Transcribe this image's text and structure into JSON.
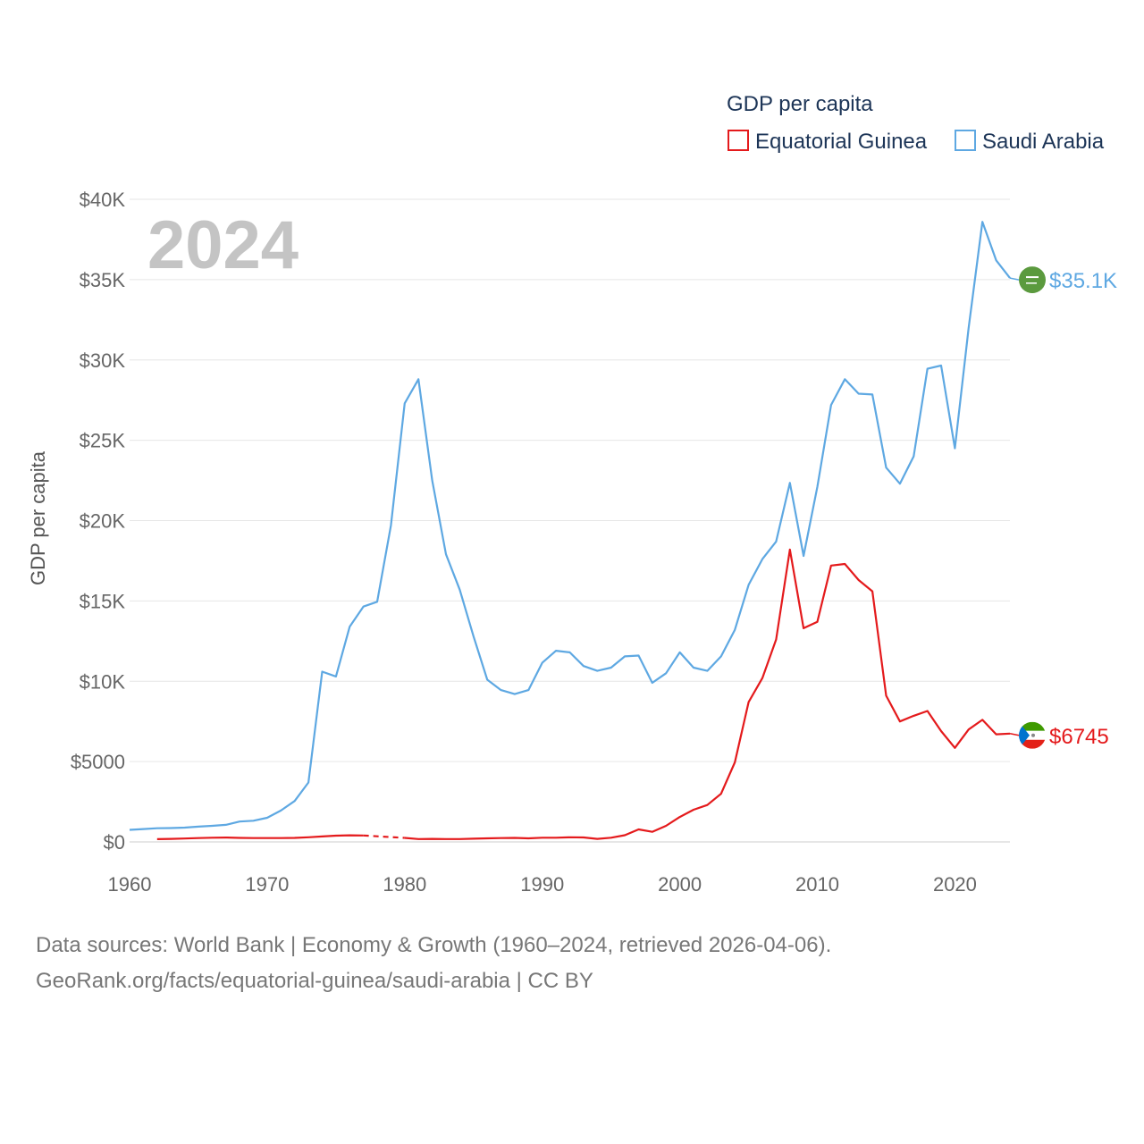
{
  "chart_data": {
    "type": "line",
    "title": "2024",
    "ylabel": "GDP per capita",
    "xlabel": "",
    "legend_title": "GDP per capita",
    "legend_position": "top-right",
    "xlim": [
      1960,
      2024
    ],
    "ylim": [
      0,
      40000
    ],
    "x_ticks": [
      1960,
      1970,
      1980,
      1990,
      2000,
      2010,
      2020
    ],
    "y_ticks": [
      {
        "value": 0,
        "label": "$0"
      },
      {
        "value": 5000,
        "label": "$5000"
      },
      {
        "value": 10000,
        "label": "$10K"
      },
      {
        "value": 15000,
        "label": "$15K"
      },
      {
        "value": 20000,
        "label": "$20K"
      },
      {
        "value": 25000,
        "label": "$25K"
      },
      {
        "value": 30000,
        "label": "$30K"
      },
      {
        "value": 35000,
        "label": "$35K"
      },
      {
        "value": 40000,
        "label": "$40K"
      }
    ],
    "series": [
      {
        "name": "Equatorial Guinea",
        "color": "#e41a1c",
        "end_label": "$6745",
        "flag_icon": "equatorial-guinea-flag-icon",
        "gap_years": [
          1977,
          1980
        ],
        "points": [
          [
            1962,
            170
          ],
          [
            1963,
            190
          ],
          [
            1964,
            210
          ],
          [
            1965,
            240
          ],
          [
            1966,
            260
          ],
          [
            1967,
            270
          ],
          [
            1968,
            250
          ],
          [
            1969,
            240
          ],
          [
            1970,
            240
          ],
          [
            1971,
            240
          ],
          [
            1972,
            250
          ],
          [
            1973,
            290
          ],
          [
            1974,
            340
          ],
          [
            1975,
            390
          ],
          [
            1976,
            410
          ],
          [
            1977,
            400
          ],
          [
            1980,
            250
          ],
          [
            1981,
            180
          ],
          [
            1982,
            190
          ],
          [
            1983,
            180
          ],
          [
            1984,
            180
          ],
          [
            1985,
            200
          ],
          [
            1986,
            220
          ],
          [
            1987,
            240
          ],
          [
            1988,
            250
          ],
          [
            1989,
            220
          ],
          [
            1990,
            260
          ],
          [
            1991,
            260
          ],
          [
            1992,
            290
          ],
          [
            1993,
            280
          ],
          [
            1994,
            190
          ],
          [
            1995,
            260
          ],
          [
            1996,
            420
          ],
          [
            1997,
            780
          ],
          [
            1998,
            630
          ],
          [
            1999,
            1000
          ],
          [
            2000,
            1550
          ],
          [
            2001,
            2000
          ],
          [
            2002,
            2300
          ],
          [
            2003,
            3000
          ],
          [
            2004,
            4950
          ],
          [
            2005,
            8700
          ],
          [
            2006,
            10200
          ],
          [
            2007,
            12600
          ],
          [
            2008,
            18200
          ],
          [
            2009,
            13300
          ],
          [
            2010,
            13700
          ],
          [
            2011,
            17200
          ],
          [
            2012,
            17300
          ],
          [
            2013,
            16300
          ],
          [
            2014,
            15600
          ],
          [
            2015,
            9100
          ],
          [
            2016,
            7500
          ],
          [
            2017,
            7850
          ],
          [
            2018,
            8150
          ],
          [
            2019,
            6900
          ],
          [
            2020,
            5850
          ],
          [
            2021,
            7000
          ],
          [
            2022,
            7600
          ],
          [
            2023,
            6700
          ],
          [
            2024,
            6745
          ]
        ]
      },
      {
        "name": "Saudi Arabia",
        "color": "#5ea8e2",
        "end_label": "$35.1K",
        "flag_icon": "saudi-arabia-flag-icon",
        "gap_years": [],
        "points": [
          [
            1960,
            750
          ],
          [
            1961,
            800
          ],
          [
            1962,
            850
          ],
          [
            1963,
            860
          ],
          [
            1964,
            890
          ],
          [
            1965,
            950
          ],
          [
            1966,
            1000
          ],
          [
            1967,
            1060
          ],
          [
            1968,
            1270
          ],
          [
            1969,
            1320
          ],
          [
            1970,
            1500
          ],
          [
            1971,
            1950
          ],
          [
            1972,
            2550
          ],
          [
            1973,
            3700
          ],
          [
            1974,
            10600
          ],
          [
            1975,
            10300
          ],
          [
            1976,
            13400
          ],
          [
            1977,
            14650
          ],
          [
            1978,
            14950
          ],
          [
            1979,
            19700
          ],
          [
            1980,
            27300
          ],
          [
            1981,
            28800
          ],
          [
            1982,
            22500
          ],
          [
            1983,
            17900
          ],
          [
            1984,
            15700
          ],
          [
            1985,
            12800
          ],
          [
            1986,
            10100
          ],
          [
            1987,
            9450
          ],
          [
            1988,
            9200
          ],
          [
            1989,
            9450
          ],
          [
            1990,
            11150
          ],
          [
            1991,
            11900
          ],
          [
            1992,
            11800
          ],
          [
            1993,
            10950
          ],
          [
            1994,
            10650
          ],
          [
            1995,
            10850
          ],
          [
            1996,
            11550
          ],
          [
            1997,
            11600
          ],
          [
            1998,
            9900
          ],
          [
            1999,
            10500
          ],
          [
            2000,
            11800
          ],
          [
            2001,
            10850
          ],
          [
            2002,
            10650
          ],
          [
            2003,
            11550
          ],
          [
            2004,
            13200
          ],
          [
            2005,
            16000
          ],
          [
            2006,
            17600
          ],
          [
            2007,
            18700
          ],
          [
            2008,
            22350
          ],
          [
            2009,
            17800
          ],
          [
            2010,
            22100
          ],
          [
            2011,
            27200
          ],
          [
            2012,
            28800
          ],
          [
            2013,
            27900
          ],
          [
            2014,
            27850
          ],
          [
            2015,
            23300
          ],
          [
            2016,
            22300
          ],
          [
            2017,
            24000
          ],
          [
            2018,
            29450
          ],
          [
            2019,
            29650
          ],
          [
            2020,
            24500
          ],
          [
            2021,
            32000
          ],
          [
            2022,
            38600
          ],
          [
            2023,
            36200
          ],
          [
            2024,
            35100
          ]
        ]
      }
    ]
  },
  "footer": {
    "line1": "Data sources: World Bank | Economy & Growth (1960–2024, retrieved 2026-04-06).",
    "line2": "GeoRank.org/facts/equatorial-guinea/saudi-arabia | CC BY"
  }
}
